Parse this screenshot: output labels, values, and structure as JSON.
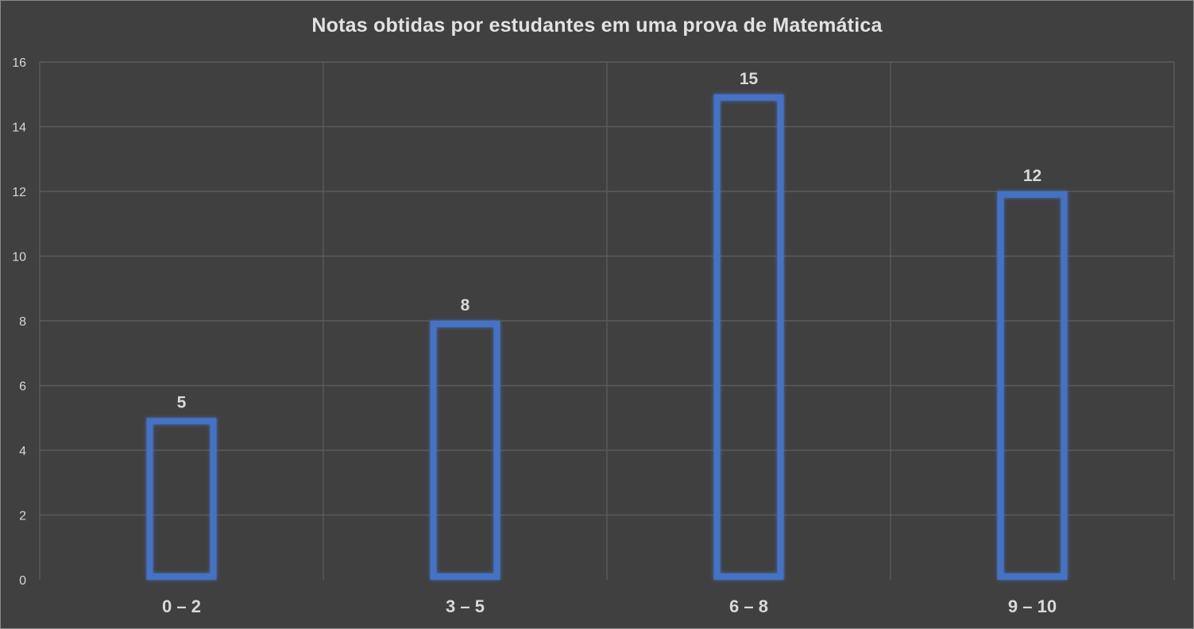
{
  "chart_data": {
    "type": "bar",
    "title": "Notas obtidas por estudantes em uma prova de Matemática",
    "categories": [
      "0 – 2",
      "3 – 5",
      "6 – 8",
      "9 – 10"
    ],
    "values": [
      5,
      8,
      15,
      12
    ],
    "data_labels": [
      "5",
      "8",
      "15",
      "12"
    ],
    "ylim": [
      0,
      16
    ],
    "yticks": [
      0,
      2,
      4,
      6,
      8,
      10,
      12,
      14,
      16
    ],
    "xlabel": "",
    "ylabel": "",
    "grid": true,
    "legend": "none",
    "bar_style": "outline",
    "colors": {
      "background": "#404040",
      "bar_outline": "#4472C4",
      "grid": "#5a5a5a",
      "text": "#d9d9d9"
    }
  }
}
